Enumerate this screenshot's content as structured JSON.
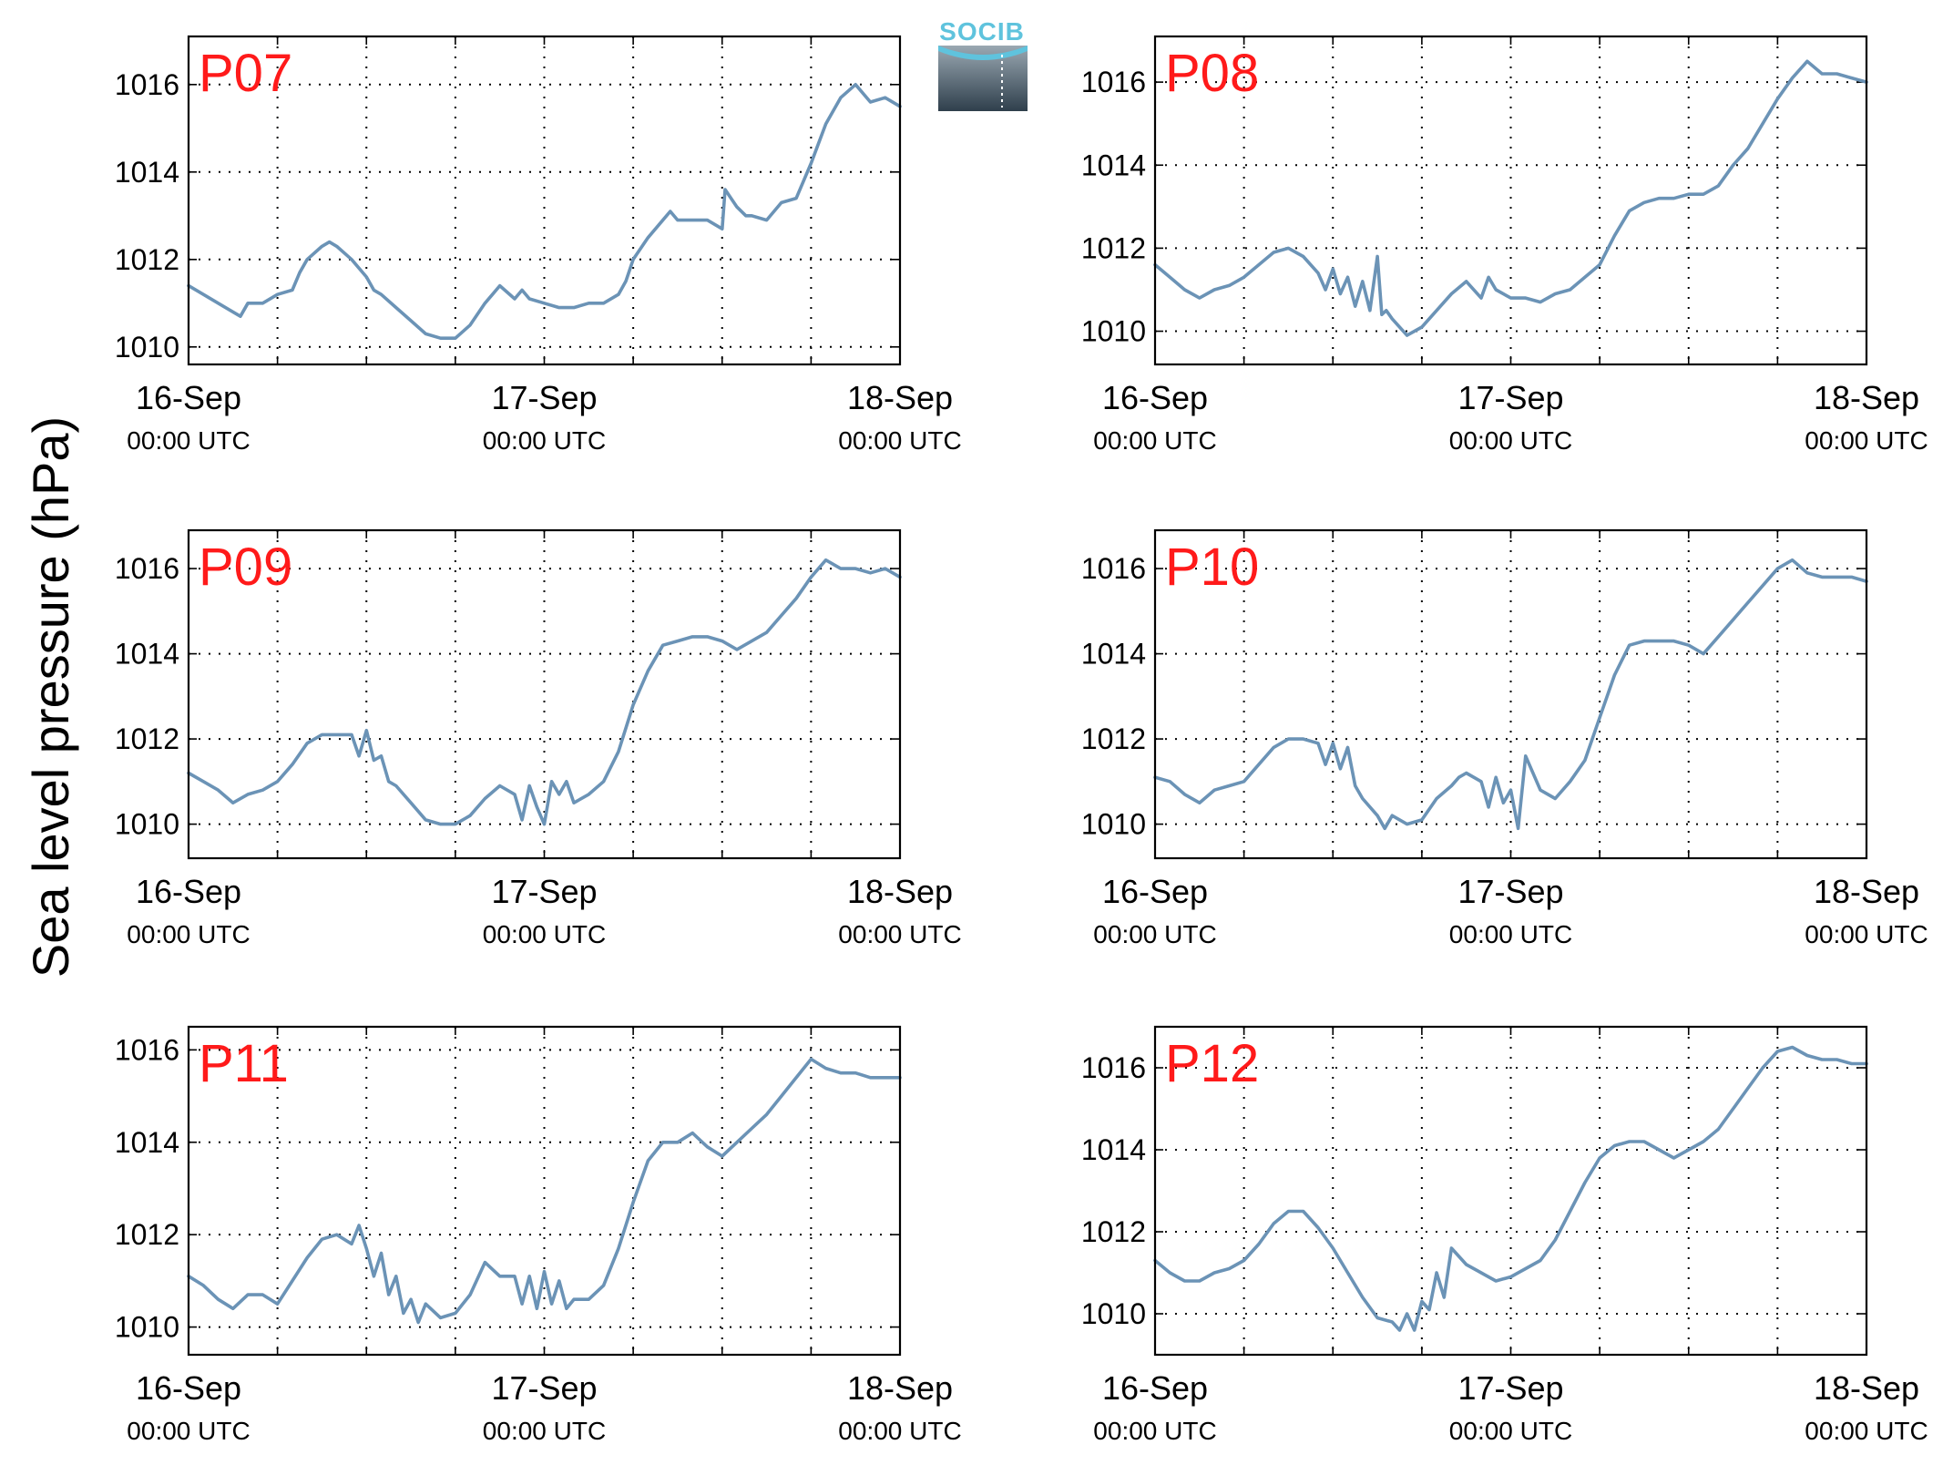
{
  "logo": {
    "text": "SOCIB"
  },
  "figure": {
    "ylabel": "Sea level pressure (hPa)",
    "line_color": "#6b93b6",
    "label_color": "#ff1a1a",
    "grid": "dotted"
  },
  "chart_data": [
    {
      "type": "line",
      "title": "P07",
      "xlabels": [
        [
          "16-Sep",
          "00:00 UTC"
        ],
        [
          "17-Sep",
          "00:00 UTC"
        ],
        [
          "18-Sep",
          "00:00 UTC"
        ]
      ],
      "xlim": [
        0,
        48
      ],
      "ylim": [
        1009.6,
        1017.1
      ],
      "yticks": [
        1010,
        1012,
        1014,
        1016
      ],
      "x": [
        0,
        1,
        2,
        3,
        3.5,
        4,
        5,
        6,
        7,
        7.5,
        8,
        9,
        9.5,
        10,
        11,
        12,
        12.5,
        13,
        14,
        15,
        16,
        17,
        18,
        19,
        20,
        20.5,
        21,
        22,
        22.5,
        23,
        24,
        25,
        26,
        27,
        28,
        29,
        29.5,
        30,
        31,
        32,
        32.5,
        33,
        34,
        35,
        36,
        36.2,
        37,
        37.6,
        38,
        39,
        40,
        41,
        42,
        43,
        44,
        45,
        46,
        47,
        48
      ],
      "values": [
        1011.4,
        1011.2,
        1011.0,
        1010.8,
        1010.7,
        1011.0,
        1011.0,
        1011.2,
        1011.3,
        1011.7,
        1012.0,
        1012.3,
        1012.4,
        1012.3,
        1012.0,
        1011.6,
        1011.3,
        1011.2,
        1010.9,
        1010.6,
        1010.3,
        1010.2,
        1010.2,
        1010.5,
        1011.0,
        1011.2,
        1011.4,
        1011.1,
        1011.3,
        1011.1,
        1011.0,
        1010.9,
        1010.9,
        1011.0,
        1011.0,
        1011.2,
        1011.5,
        1012.0,
        1012.5,
        1012.9,
        1013.1,
        1012.9,
        1012.9,
        1012.9,
        1012.7,
        1013.6,
        1013.2,
        1013.0,
        1013.0,
        1012.9,
        1013.3,
        1013.4,
        1014.2,
        1015.1,
        1015.7,
        1016.0,
        1015.6,
        1015.7,
        1015.5
      ]
    },
    {
      "type": "line",
      "title": "P08",
      "xlabels": [
        [
          "16-Sep",
          "00:00 UTC"
        ],
        [
          "17-Sep",
          "00:00 UTC"
        ],
        [
          "18-Sep",
          "00:00 UTC"
        ]
      ],
      "xlim": [
        0,
        48
      ],
      "ylim": [
        1009.2,
        1017.1
      ],
      "yticks": [
        1010,
        1012,
        1014,
        1016
      ],
      "x": [
        0,
        1,
        2,
        3,
        4,
        5,
        6,
        7,
        8,
        9,
        10,
        11,
        11.5,
        12,
        12.5,
        13,
        13.5,
        14,
        14.5,
        15,
        15.3,
        15.6,
        16,
        17,
        18,
        19,
        20,
        21,
        22,
        22.5,
        23,
        24,
        25,
        26,
        27,
        28,
        29,
        30,
        31,
        32,
        33,
        34,
        35,
        36,
        37,
        38,
        39,
        40,
        41,
        42,
        43,
        44,
        45,
        46,
        47,
        48
      ],
      "values": [
        1011.6,
        1011.3,
        1011.0,
        1010.8,
        1011.0,
        1011.1,
        1011.3,
        1011.6,
        1011.9,
        1012.0,
        1011.8,
        1011.4,
        1011.0,
        1011.5,
        1010.9,
        1011.3,
        1010.6,
        1011.2,
        1010.5,
        1011.8,
        1010.4,
        1010.5,
        1010.3,
        1009.9,
        1010.1,
        1010.5,
        1010.9,
        1011.2,
        1010.8,
        1011.3,
        1011.0,
        1010.8,
        1010.8,
        1010.7,
        1010.9,
        1011.0,
        1011.3,
        1011.6,
        1012.3,
        1012.9,
        1013.1,
        1013.2,
        1013.2,
        1013.3,
        1013.3,
        1013.5,
        1014.0,
        1014.4,
        1015.0,
        1015.6,
        1016.1,
        1016.5,
        1016.2,
        1016.2,
        1016.1,
        1016.0
      ]
    },
    {
      "type": "line",
      "title": "P09",
      "xlabels": [
        [
          "16-Sep",
          "00:00 UTC"
        ],
        [
          "17-Sep",
          "00:00 UTC"
        ],
        [
          "18-Sep",
          "00:00 UTC"
        ]
      ],
      "xlim": [
        0,
        48
      ],
      "ylim": [
        1009.2,
        1016.9
      ],
      "yticks": [
        1010,
        1012,
        1014,
        1016
      ],
      "x": [
        0,
        1,
        2,
        3,
        4,
        5,
        6,
        7,
        8,
        9,
        10,
        11,
        11.5,
        12,
        12.5,
        13,
        13.5,
        14,
        15,
        16,
        17,
        18,
        19,
        20,
        21,
        22,
        22.5,
        23,
        23.5,
        24,
        24.5,
        25,
        25.5,
        26,
        27,
        28,
        29,
        30,
        31,
        32,
        33,
        34,
        35,
        36,
        37,
        38,
        39,
        40,
        41,
        42,
        43,
        44,
        45,
        46,
        47,
        48
      ],
      "values": [
        1011.2,
        1011.0,
        1010.8,
        1010.5,
        1010.7,
        1010.8,
        1011.0,
        1011.4,
        1011.9,
        1012.1,
        1012.1,
        1012.1,
        1011.6,
        1012.2,
        1011.5,
        1011.6,
        1011.0,
        1010.9,
        1010.5,
        1010.1,
        1010.0,
        1010.0,
        1010.2,
        1010.6,
        1010.9,
        1010.7,
        1010.1,
        1010.9,
        1010.4,
        1010.0,
        1011.0,
        1010.7,
        1011.0,
        1010.5,
        1010.7,
        1011.0,
        1011.7,
        1012.8,
        1013.6,
        1014.2,
        1014.3,
        1014.4,
        1014.4,
        1014.3,
        1014.1,
        1014.3,
        1014.5,
        1014.9,
        1015.3,
        1015.8,
        1016.2,
        1016.0,
        1016.0,
        1015.9,
        1016.0,
        1015.8
      ]
    },
    {
      "type": "line",
      "title": "P10",
      "xlabels": [
        [
          "16-Sep",
          "00:00 UTC"
        ],
        [
          "17-Sep",
          "00:00 UTC"
        ],
        [
          "18-Sep",
          "00:00 UTC"
        ]
      ],
      "xlim": [
        0,
        48
      ],
      "ylim": [
        1009.2,
        1016.9
      ],
      "yticks": [
        1010,
        1012,
        1014,
        1016
      ],
      "x": [
        0,
        1,
        2,
        3,
        4,
        5,
        6,
        7,
        8,
        9,
        10,
        11,
        11.5,
        12,
        12.5,
        13,
        13.5,
        14,
        15,
        15.5,
        16,
        17,
        18,
        19,
        20,
        20.5,
        21,
        22,
        22.5,
        23,
        23.5,
        24,
        24.5,
        25,
        26,
        27,
        28,
        29,
        30,
        31,
        32,
        33,
        34,
        35,
        36,
        37,
        38,
        39,
        40,
        41,
        42,
        43,
        44,
        45,
        46,
        47,
        48
      ],
      "values": [
        1011.1,
        1011.0,
        1010.7,
        1010.5,
        1010.8,
        1010.9,
        1011.0,
        1011.4,
        1011.8,
        1012.0,
        1012.0,
        1011.9,
        1011.4,
        1011.9,
        1011.3,
        1011.8,
        1010.9,
        1010.6,
        1010.2,
        1009.9,
        1010.2,
        1010.0,
        1010.1,
        1010.6,
        1010.9,
        1011.1,
        1011.2,
        1011.0,
        1010.4,
        1011.1,
        1010.5,
        1010.8,
        1009.9,
        1011.6,
        1010.8,
        1010.6,
        1011.0,
        1011.5,
        1012.5,
        1013.5,
        1014.2,
        1014.3,
        1014.3,
        1014.3,
        1014.2,
        1014.0,
        1014.4,
        1014.8,
        1015.2,
        1015.6,
        1016.0,
        1016.2,
        1015.9,
        1015.8,
        1015.8,
        1015.8,
        1015.7
      ]
    },
    {
      "type": "line",
      "title": "P11",
      "xlabels": [
        [
          "16-Sep",
          "00:00 UTC"
        ],
        [
          "17-Sep",
          "00:00 UTC"
        ],
        [
          "18-Sep",
          "00:00 UTC"
        ]
      ],
      "xlim": [
        0,
        48
      ],
      "ylim": [
        1009.4,
        1016.5
      ],
      "yticks": [
        1010,
        1012,
        1014,
        1016
      ],
      "x": [
        0,
        1,
        2,
        3,
        4,
        5,
        6,
        7,
        8,
        9,
        10,
        11,
        11.5,
        12,
        12.5,
        13,
        13.5,
        14,
        14.5,
        15,
        15.5,
        16,
        17,
        18,
        19,
        20,
        21,
        22,
        22.5,
        23,
        23.5,
        24,
        24.5,
        25,
        25.5,
        26,
        27,
        28,
        29,
        30,
        31,
        32,
        33,
        34,
        35,
        36,
        37,
        38,
        39,
        40,
        41,
        42,
        43,
        44,
        45,
        46,
        47,
        48
      ],
      "values": [
        1011.1,
        1010.9,
        1010.6,
        1010.4,
        1010.7,
        1010.7,
        1010.5,
        1011.0,
        1011.5,
        1011.9,
        1012.0,
        1011.8,
        1012.2,
        1011.7,
        1011.1,
        1011.6,
        1010.7,
        1011.1,
        1010.3,
        1010.6,
        1010.1,
        1010.5,
        1010.2,
        1010.3,
        1010.7,
        1011.4,
        1011.1,
        1011.1,
        1010.5,
        1011.1,
        1010.4,
        1011.2,
        1010.5,
        1011.0,
        1010.4,
        1010.6,
        1010.6,
        1010.9,
        1011.7,
        1012.7,
        1013.6,
        1014.0,
        1014.0,
        1014.2,
        1013.9,
        1013.7,
        1014.0,
        1014.3,
        1014.6,
        1015.0,
        1015.4,
        1015.8,
        1015.6,
        1015.5,
        1015.5,
        1015.4,
        1015.4,
        1015.4
      ]
    },
    {
      "type": "line",
      "title": "P12",
      "xlabels": [
        [
          "16-Sep",
          "00:00 UTC"
        ],
        [
          "17-Sep",
          "00:00 UTC"
        ],
        [
          "18-Sep",
          "00:00 UTC"
        ]
      ],
      "xlim": [
        0,
        48
      ],
      "ylim": [
        1009.0,
        1017.0
      ],
      "yticks": [
        1010,
        1012,
        1014,
        1016
      ],
      "x": [
        0,
        1,
        2,
        3,
        4,
        5,
        6,
        7,
        8,
        9,
        10,
        11,
        12,
        13,
        14,
        15,
        16,
        16.5,
        17,
        17.5,
        18,
        18.5,
        19,
        19.5,
        20,
        21,
        22,
        23,
        24,
        25,
        26,
        27,
        28,
        29,
        30,
        31,
        32,
        33,
        34,
        35,
        36,
        37,
        38,
        39,
        40,
        41,
        42,
        43,
        44,
        45,
        46,
        47,
        48
      ],
      "values": [
        1011.3,
        1011.0,
        1010.8,
        1010.8,
        1011.0,
        1011.1,
        1011.3,
        1011.7,
        1012.2,
        1012.5,
        1012.5,
        1012.1,
        1011.6,
        1011.0,
        1010.4,
        1009.9,
        1009.8,
        1009.6,
        1010.0,
        1009.6,
        1010.3,
        1010.1,
        1011.0,
        1010.4,
        1011.6,
        1011.2,
        1011.0,
        1010.8,
        1010.9,
        1011.1,
        1011.3,
        1011.8,
        1012.5,
        1013.2,
        1013.8,
        1014.1,
        1014.2,
        1014.2,
        1014.0,
        1013.8,
        1014.0,
        1014.2,
        1014.5,
        1015.0,
        1015.5,
        1016.0,
        1016.4,
        1016.5,
        1016.3,
        1016.2,
        1016.2,
        1016.1,
        1016.1
      ]
    }
  ]
}
